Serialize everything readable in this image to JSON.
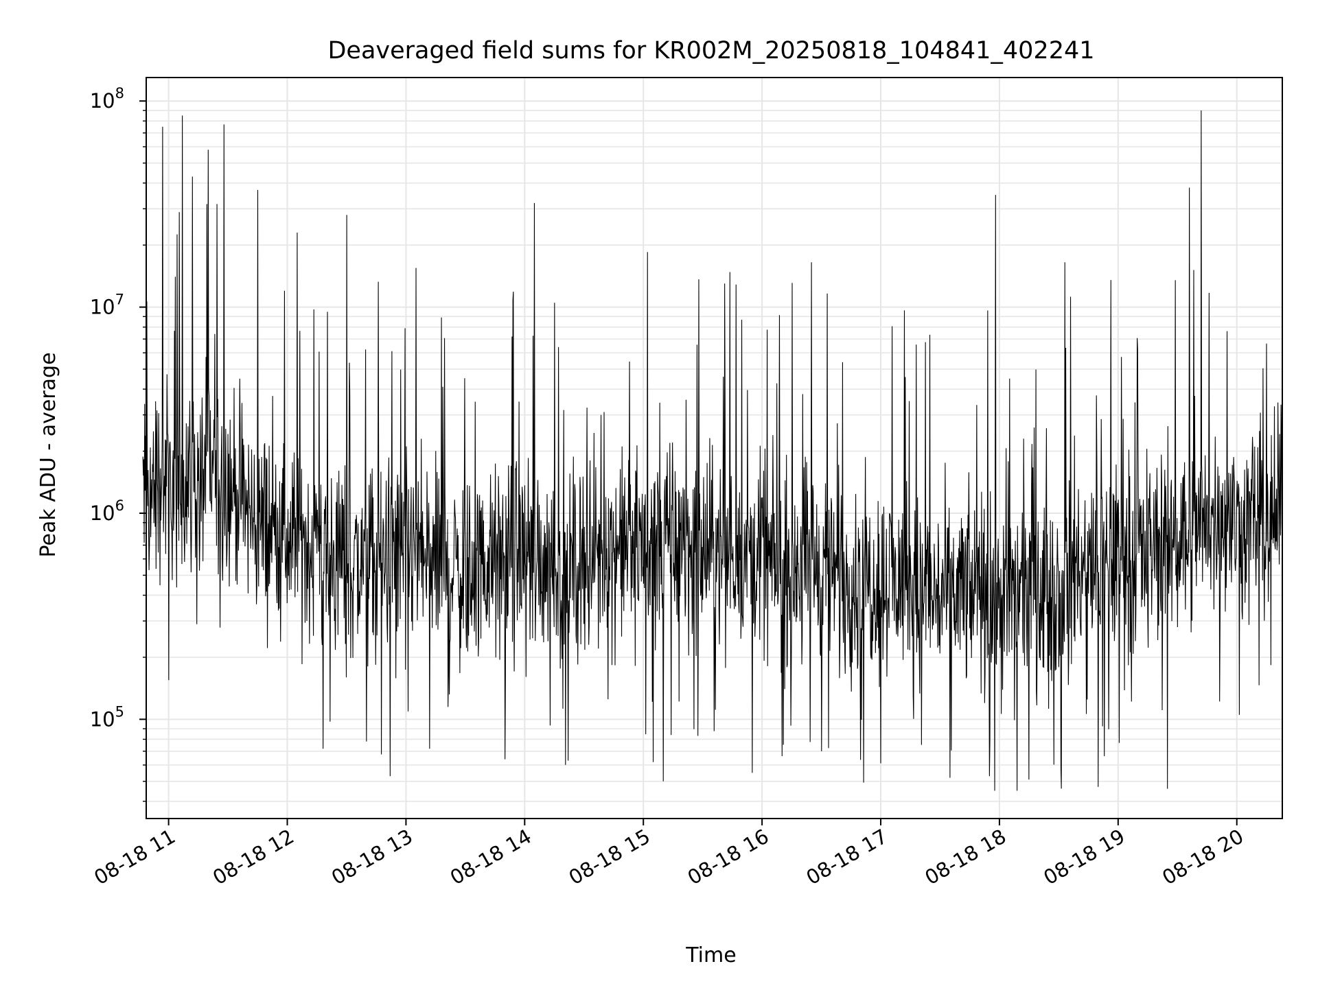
{
  "chart_data": {
    "type": "line",
    "title": "Deaveraged field sums for KR002M_20250818_104841_402241",
    "xlabel": "Time",
    "ylabel": "Peak ADU - average",
    "y_scale": "log",
    "ylim": [
      33000,
      130000000
    ],
    "xlim": [
      "2025-08-18 10:48:41",
      "2025-08-18 20:23:00"
    ],
    "grid": true,
    "line_color": "#000000",
    "grid_color": "#e6e6e6",
    "x_ticks": [
      {
        "value": "2025-08-18 11:00",
        "label": "08-18 11"
      },
      {
        "value": "2025-08-18 12:00",
        "label": "08-18 12"
      },
      {
        "value": "2025-08-18 13:00",
        "label": "08-18 13"
      },
      {
        "value": "2025-08-18 14:00",
        "label": "08-18 14"
      },
      {
        "value": "2025-08-18 15:00",
        "label": "08-18 15"
      },
      {
        "value": "2025-08-18 16:00",
        "label": "08-18 16"
      },
      {
        "value": "2025-08-18 17:00",
        "label": "08-18 17"
      },
      {
        "value": "2025-08-18 18:00",
        "label": "08-18 18"
      },
      {
        "value": "2025-08-18 19:00",
        "label": "08-18 19"
      },
      {
        "value": "2025-08-18 20:00",
        "label": "08-18 20"
      }
    ],
    "y_ticks": [
      {
        "value": 100000,
        "base": "10",
        "exp": "5"
      },
      {
        "value": 1000000,
        "base": "10",
        "exp": "6"
      },
      {
        "value": 10000000,
        "base": "10",
        "exp": "7"
      },
      {
        "value": 100000000,
        "base": "10",
        "exp": "8"
      }
    ],
    "series": [
      {
        "x": [
          "2025-08-18 10:50",
          "2025-08-18 10:55",
          "2025-08-18 11:00",
          "2025-08-18 11:05",
          "2025-08-18 11:10",
          "2025-08-18 11:15",
          "2025-08-18 11:20",
          "2025-08-18 11:25",
          "2025-08-18 11:30",
          "2025-08-18 11:35",
          "2025-08-18 11:40",
          "2025-08-18 11:45",
          "2025-08-18 11:50",
          "2025-08-18 11:55",
          "2025-08-18 12:00",
          "2025-08-18 12:10",
          "2025-08-18 12:20",
          "2025-08-18 12:30",
          "2025-08-18 12:40",
          "2025-08-18 12:50",
          "2025-08-18 13:00",
          "2025-08-18 13:10",
          "2025-08-18 13:20",
          "2025-08-18 13:30",
          "2025-08-18 13:40",
          "2025-08-18 13:50",
          "2025-08-18 14:00",
          "2025-08-18 14:10",
          "2025-08-18 14:20",
          "2025-08-18 14:30",
          "2025-08-18 14:40",
          "2025-08-18 14:50",
          "2025-08-18 15:00",
          "2025-08-18 15:10",
          "2025-08-18 15:20",
          "2025-08-18 15:30",
          "2025-08-18 15:40",
          "2025-08-18 15:50",
          "2025-08-18 16:00",
          "2025-08-18 16:10",
          "2025-08-18 16:20",
          "2025-08-18 16:30",
          "2025-08-18 16:40",
          "2025-08-18 16:50",
          "2025-08-18 17:00",
          "2025-08-18 17:10",
          "2025-08-18 17:20",
          "2025-08-18 17:30",
          "2025-08-18 17:40",
          "2025-08-18 17:50",
          "2025-08-18 18:00",
          "2025-08-18 18:10",
          "2025-08-18 18:20",
          "2025-08-18 18:30",
          "2025-08-18 18:40",
          "2025-08-18 18:50",
          "2025-08-18 19:00",
          "2025-08-18 19:10",
          "2025-08-18 19:20",
          "2025-08-18 19:30",
          "2025-08-18 19:40",
          "2025-08-18 19:50",
          "2025-08-18 20:00",
          "2025-08-18 20:10",
          "2025-08-18 20:20"
        ],
        "y": [
          1200000,
          1500000,
          1400000,
          1300000,
          1600000,
          1200000,
          1800000,
          1500000,
          1400000,
          1300000,
          1000000,
          900000,
          850000,
          800000,
          750000,
          700000,
          650000,
          600000,
          550000,
          600000,
          650000,
          600000,
          550000,
          500000,
          550000,
          600000,
          650000,
          600000,
          550000,
          600000,
          650000,
          700000,
          700000,
          750000,
          700000,
          650000,
          700000,
          650000,
          600000,
          550000,
          600000,
          550000,
          500000,
          450000,
          500000,
          450000,
          400000,
          400000,
          420000,
          400000,
          380000,
          420000,
          400000,
          450000,
          500000,
          550000,
          600000,
          650000,
          700000,
          800000,
          850000,
          900000,
          900000,
          950000,
          1000000
        ],
        "peaks": [
          {
            "x": "2025-08-18 10:57",
            "y": 75000000
          },
          {
            "x": "2025-08-18 11:07",
            "y": 85000000
          },
          {
            "x": "2025-08-18 11:12",
            "y": 43000000
          },
          {
            "x": "2025-08-18 11:20",
            "y": 58000000
          },
          {
            "x": "2025-08-18 11:28",
            "y": 77000000
          },
          {
            "x": "2025-08-18 11:45",
            "y": 37000000
          },
          {
            "x": "2025-08-18 12:05",
            "y": 23000000
          },
          {
            "x": "2025-08-18 12:30",
            "y": 28000000
          },
          {
            "x": "2025-08-18 13:05",
            "y": 15500000
          },
          {
            "x": "2025-08-18 14:05",
            "y": 32000000
          },
          {
            "x": "2025-08-18 14:15",
            "y": 10500000
          },
          {
            "x": "2025-08-18 15:02",
            "y": 18500000
          },
          {
            "x": "2025-08-18 16:25",
            "y": 16500000
          },
          {
            "x": "2025-08-18 17:58",
            "y": 35000000
          },
          {
            "x": "2025-08-18 18:33",
            "y": 16500000
          },
          {
            "x": "2025-08-18 19:25",
            "y": 20000000
          },
          {
            "x": "2025-08-18 19:36",
            "y": 38000000
          },
          {
            "x": "2025-08-18 19:42",
            "y": 90000000
          }
        ],
        "dips": [
          {
            "x": "2025-08-18 11:00",
            "y": 155000
          },
          {
            "x": "2025-08-18 12:18",
            "y": 72000
          },
          {
            "x": "2025-08-18 12:40",
            "y": 78000
          },
          {
            "x": "2025-08-18 12:52",
            "y": 53000
          },
          {
            "x": "2025-08-18 13:12",
            "y": 72000
          },
          {
            "x": "2025-08-18 13:50",
            "y": 64000
          },
          {
            "x": "2025-08-18 14:22",
            "y": 63000
          },
          {
            "x": "2025-08-18 15:05",
            "y": 62000
          },
          {
            "x": "2025-08-18 15:10",
            "y": 50000
          },
          {
            "x": "2025-08-18 15:55",
            "y": 55000
          },
          {
            "x": "2025-08-18 16:30",
            "y": 70000
          },
          {
            "x": "2025-08-18 17:35",
            "y": 52000
          },
          {
            "x": "2025-08-18 17:55",
            "y": 53000
          },
          {
            "x": "2025-08-18 18:15",
            "y": 51000
          },
          {
            "x": "2025-08-18 18:50",
            "y": 47000
          },
          {
            "x": "2025-08-18 19:25",
            "y": 46000
          }
        ]
      }
    ]
  }
}
